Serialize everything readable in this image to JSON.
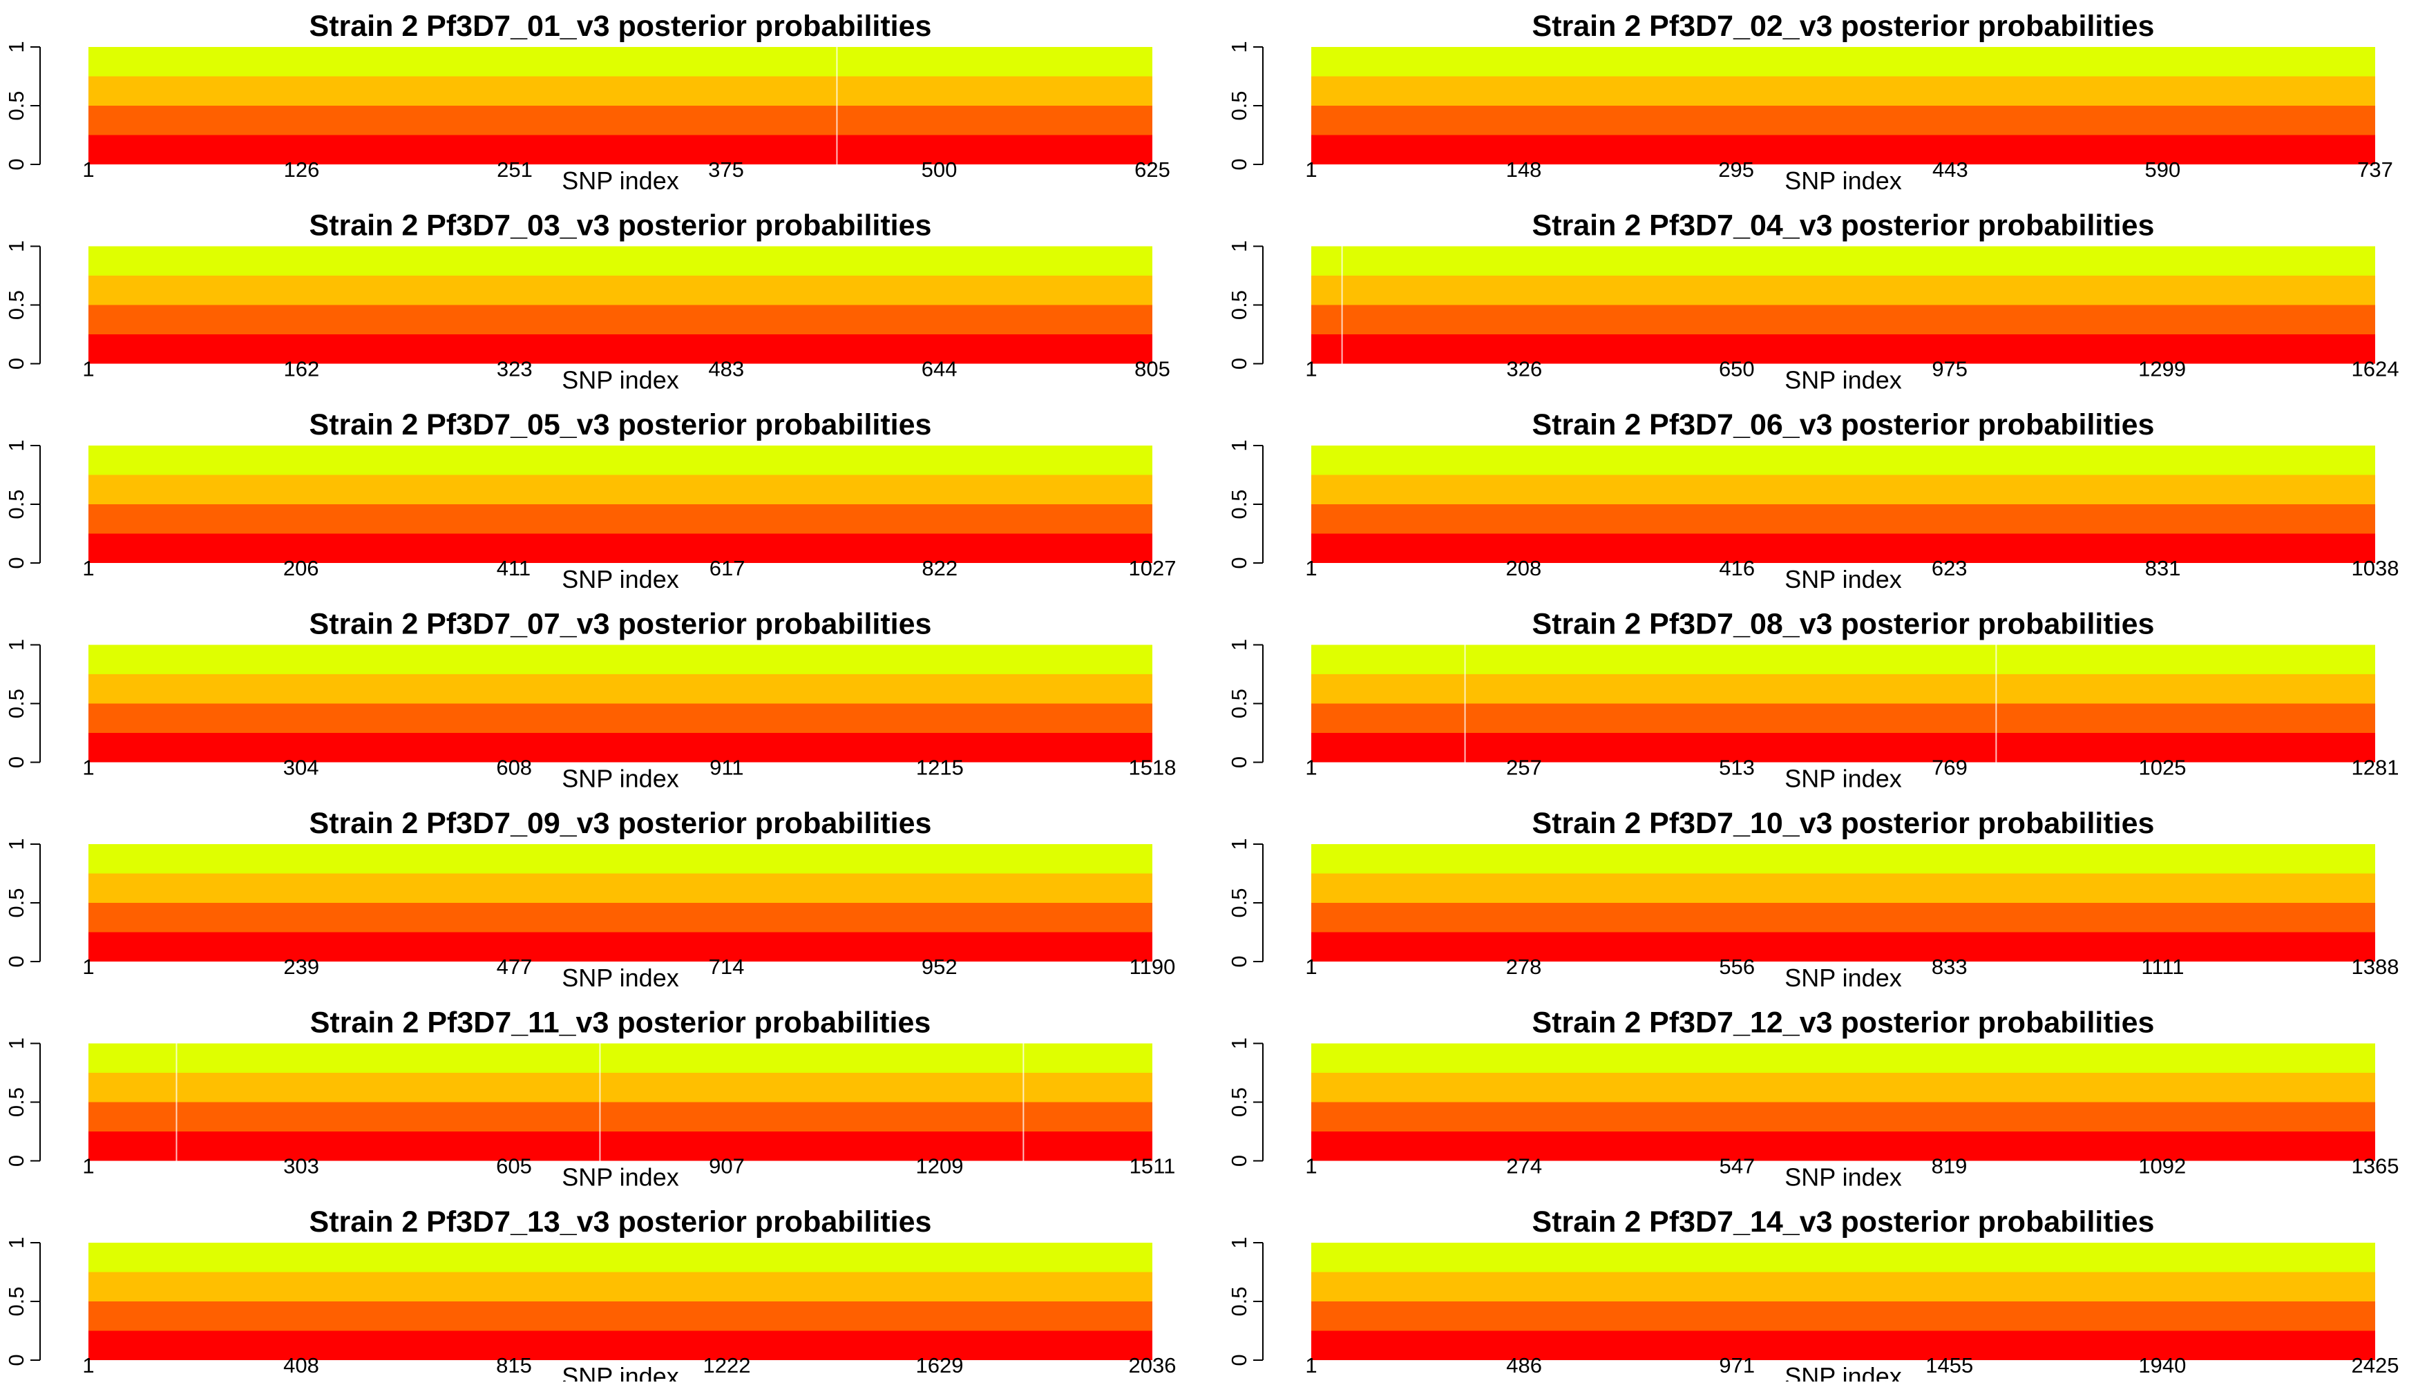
{
  "colors": {
    "band_top": "#DFFF00",
    "band_2": "#FFBF00",
    "band_3": "#FF6000",
    "band_bottom": "#FF0000",
    "background": "#FFFFFF",
    "text": "#000000"
  },
  "chart_data": [
    {
      "type": "area",
      "title": "Strain 2 Pf3D7_01_v3 posterior probabilities",
      "xlabel": "SNP index",
      "ylabel": "",
      "xlim": [
        1,
        625
      ],
      "ylim": [
        0,
        1
      ],
      "xticks": [
        1,
        126,
        251,
        375,
        500,
        625
      ],
      "yticks": [
        0,
        0.5,
        1
      ],
      "bands": [
        0.25,
        0.5,
        0.75,
        1
      ],
      "breaks": [
        440
      ]
    },
    {
      "type": "area",
      "title": "Strain 2 Pf3D7_02_v3 posterior probabilities",
      "xlabel": "SNP index",
      "ylabel": "",
      "xlim": [
        1,
        737
      ],
      "ylim": [
        0,
        1
      ],
      "xticks": [
        1,
        148,
        295,
        443,
        590,
        737
      ],
      "yticks": [
        0,
        0.5,
        1
      ],
      "bands": [
        0.25,
        0.5,
        0.75,
        1
      ],
      "breaks": []
    },
    {
      "type": "area",
      "title": "Strain 2 Pf3D7_03_v3 posterior probabilities",
      "xlabel": "SNP index",
      "ylabel": "",
      "xlim": [
        1,
        805
      ],
      "ylim": [
        0,
        1
      ],
      "xticks": [
        1,
        162,
        323,
        483,
        644,
        805
      ],
      "yticks": [
        0,
        0.5,
        1
      ],
      "bands": [
        0.25,
        0.5,
        0.75,
        1
      ],
      "breaks": []
    },
    {
      "type": "area",
      "title": "Strain 2 Pf3D7_04_v3 posterior probabilities",
      "xlabel": "SNP index",
      "ylabel": "",
      "xlim": [
        1,
        1624
      ],
      "ylim": [
        0,
        1
      ],
      "xticks": [
        1,
        326,
        650,
        975,
        1299,
        1624
      ],
      "yticks": [
        0,
        0.5,
        1
      ],
      "bands": [
        0.25,
        0.5,
        0.75,
        1
      ],
      "breaks": [
        48
      ]
    },
    {
      "type": "area",
      "title": "Strain 2 Pf3D7_05_v3 posterior probabilities",
      "xlabel": "SNP index",
      "ylabel": "",
      "xlim": [
        1,
        1027
      ],
      "ylim": [
        0,
        1
      ],
      "xticks": [
        1,
        206,
        411,
        617,
        822,
        1027
      ],
      "yticks": [
        0,
        0.5,
        1
      ],
      "bands": [
        0.25,
        0.5,
        0.75,
        1
      ],
      "breaks": []
    },
    {
      "type": "area",
      "title": "Strain 2 Pf3D7_06_v3 posterior probabilities",
      "xlabel": "SNP index",
      "ylabel": "",
      "xlim": [
        1,
        1038
      ],
      "ylim": [
        0,
        1
      ],
      "xticks": [
        1,
        208,
        416,
        623,
        831,
        1038
      ],
      "yticks": [
        0,
        0.5,
        1
      ],
      "bands": [
        0.25,
        0.5,
        0.75,
        1
      ],
      "breaks": []
    },
    {
      "type": "area",
      "title": "Strain 2 Pf3D7_07_v3 posterior probabilities",
      "xlabel": "SNP index",
      "ylabel": "",
      "xlim": [
        1,
        1518
      ],
      "ylim": [
        0,
        1
      ],
      "xticks": [
        1,
        304,
        608,
        911,
        1215,
        1518
      ],
      "yticks": [
        0,
        0.5,
        1
      ],
      "bands": [
        0.25,
        0.5,
        0.75,
        1
      ],
      "breaks": []
    },
    {
      "type": "area",
      "title": "Strain 2 Pf3D7_08_v3 posterior probabilities",
      "xlabel": "SNP index",
      "ylabel": "",
      "xlim": [
        1,
        1281
      ],
      "ylim": [
        0,
        1
      ],
      "xticks": [
        1,
        257,
        513,
        769,
        1025,
        1281
      ],
      "yticks": [
        0,
        0.5,
        1
      ],
      "bands": [
        0.25,
        0.5,
        0.75,
        1
      ],
      "breaks": [
        186,
        825
      ]
    },
    {
      "type": "area",
      "title": "Strain 2 Pf3D7_09_v3 posterior probabilities",
      "xlabel": "SNP index",
      "ylabel": "",
      "xlim": [
        1,
        1190
      ],
      "ylim": [
        0,
        1
      ],
      "xticks": [
        1,
        239,
        477,
        714,
        952,
        1190
      ],
      "yticks": [
        0,
        0.5,
        1
      ],
      "bands": [
        0.25,
        0.5,
        0.75,
        1
      ],
      "breaks": []
    },
    {
      "type": "area",
      "title": "Strain 2 Pf3D7_10_v3 posterior probabilities",
      "xlabel": "SNP index",
      "ylabel": "",
      "xlim": [
        1,
        1388
      ],
      "ylim": [
        0,
        1
      ],
      "xticks": [
        1,
        278,
        556,
        833,
        1111,
        1388
      ],
      "yticks": [
        0,
        0.5,
        1
      ],
      "bands": [
        0.25,
        0.5,
        0.75,
        1
      ],
      "breaks": []
    },
    {
      "type": "area",
      "title": "Strain 2 Pf3D7_11_v3 posterior probabilities",
      "xlabel": "SNP index",
      "ylabel": "",
      "xlim": [
        1,
        1511
      ],
      "ylim": [
        0,
        1
      ],
      "xticks": [
        1,
        303,
        605,
        907,
        1209,
        1511
      ],
      "yticks": [
        0,
        0.5,
        1
      ],
      "bands": [
        0.25,
        0.5,
        0.75,
        1
      ],
      "breaks": [
        126,
        727,
        1328
      ]
    },
    {
      "type": "area",
      "title": "Strain 2 Pf3D7_12_v3 posterior probabilities",
      "xlabel": "SNP index",
      "ylabel": "",
      "xlim": [
        1,
        1365
      ],
      "ylim": [
        0,
        1
      ],
      "xticks": [
        1,
        274,
        547,
        819,
        1092,
        1365
      ],
      "yticks": [
        0,
        0.5,
        1
      ],
      "bands": [
        0.25,
        0.5,
        0.75,
        1
      ],
      "breaks": []
    },
    {
      "type": "area",
      "title": "Strain 2 Pf3D7_13_v3 posterior probabilities",
      "xlabel": "SNP index",
      "ylabel": "",
      "xlim": [
        1,
        2036
      ],
      "ylim": [
        0,
        1
      ],
      "xticks": [
        1,
        408,
        815,
        1222,
        1629,
        2036
      ],
      "yticks": [
        0,
        0.5,
        1
      ],
      "bands": [
        0.25,
        0.5,
        0.75,
        1
      ],
      "breaks": []
    },
    {
      "type": "area",
      "title": "Strain 2 Pf3D7_14_v3 posterior probabilities",
      "xlabel": "SNP index",
      "ylabel": "",
      "xlim": [
        1,
        2425
      ],
      "ylim": [
        0,
        1
      ],
      "xticks": [
        1,
        486,
        971,
        1455,
        1940,
        2425
      ],
      "yticks": [
        0,
        0.5,
        1
      ],
      "bands": [
        0.25,
        0.5,
        0.75,
        1
      ],
      "breaks": []
    }
  ]
}
